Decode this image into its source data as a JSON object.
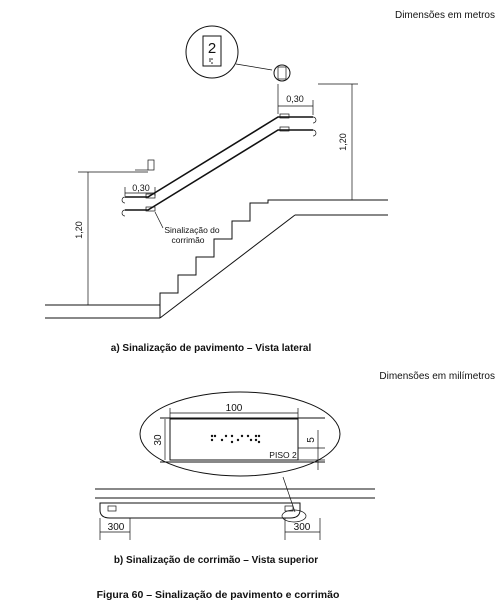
{
  "top": {
    "units_note": "Dimensões em metros",
    "sign_number": "2",
    "dim_handrail_extension": "0,30",
    "dim_handrail_extension_bottom": "0,30",
    "dim_height_upper": "1,20",
    "dim_height_lower": "1,20",
    "handrail_label_line1": "Sinalização do",
    "handrail_label_line2": "corrimão",
    "caption": "a) Sinalização de pavimento – Vista lateral"
  },
  "bottom": {
    "units_note": "Dimensões em milímetros",
    "dim_width": "100",
    "dim_height": "30",
    "dim_gap": "5",
    "floor_label": "PISO 2",
    "dim_left": "300",
    "dim_right": "300",
    "caption": "b) Sinalização de corrimão – Vista superior"
  },
  "figure_caption": "Figura 60 – Sinalização de pavimento e corrimão"
}
